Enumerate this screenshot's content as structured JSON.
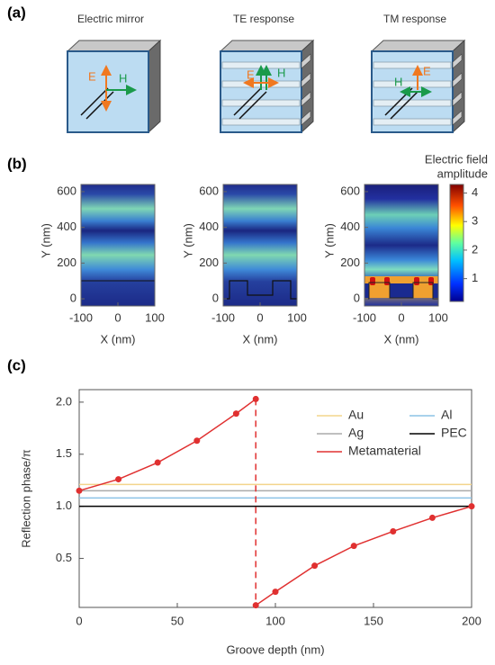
{
  "panel_a": {
    "label": "(a)",
    "diagrams": [
      {
        "title": "Electric mirror",
        "e_label": "E",
        "h_label": "H"
      },
      {
        "title": "TE response",
        "e_label": "E",
        "h_label": "H"
      },
      {
        "title": "TM response",
        "e_label": "E",
        "h_label": "H"
      }
    ]
  },
  "panel_b": {
    "label": "(b)",
    "colorbar_title": [
      "Electric field",
      "amplitude"
    ],
    "clim": [
      0.2,
      4.3
    ],
    "colorbar_ticks": [
      1,
      2,
      3,
      4
    ],
    "xlim": [
      -100,
      100
    ],
    "ylim": [
      -40,
      640
    ],
    "xticks": [
      -100,
      0,
      100
    ],
    "yticks": [
      0,
      200,
      400,
      600
    ],
    "plots": [
      {
        "xlabel": "X (nm)",
        "ylabel": "Y (nm)"
      },
      {
        "xlabel": "X (nm)",
        "ylabel": "Y (nm)"
      },
      {
        "xlabel": "X (nm)",
        "ylabel": "Y (nm)"
      }
    ]
  },
  "panel_c": {
    "label": "(c)"
  },
  "chart_data": {
    "type": "line",
    "xlabel": "Groove depth (nm)",
    "ylabel": "Reflection phase/π",
    "xlim": [
      0,
      200
    ],
    "ylim": [
      0.03,
      2.12
    ],
    "xticks": [
      0,
      50,
      100,
      150,
      200
    ],
    "yticks": [
      0.5,
      {
        "value": 1,
        "label": "1.0"
      },
      1.5,
      {
        "value": 2,
        "label": "2.0"
      }
    ],
    "legend": "upper right",
    "series": [
      {
        "name": "Au",
        "color": "#f3d58c",
        "x": [
          0,
          200
        ],
        "values": [
          1.21,
          1.21
        ]
      },
      {
        "name": "Al",
        "color": "#8cc3e6",
        "x": [
          0,
          200
        ],
        "values": [
          1.08,
          1.08
        ]
      },
      {
        "name": "Ag",
        "color": "#aaaaaa",
        "x": [
          0,
          200
        ],
        "values": [
          1.15,
          1.15
        ]
      },
      {
        "name": "PEC",
        "color": "#000000",
        "x": [
          0,
          200
        ],
        "values": [
          1.0,
          1.0
        ]
      },
      {
        "name": "Metamaterial",
        "color": "#e03030",
        "markers": true,
        "x": [
          0,
          20,
          40,
          60,
          80,
          90,
          90,
          100,
          120,
          140,
          160,
          180,
          200
        ],
        "values": [
          1.15,
          1.26,
          1.42,
          1.63,
          1.89,
          2.03,
          0.05,
          0.18,
          0.43,
          0.62,
          0.76,
          0.89,
          1.0
        ]
      }
    ]
  }
}
